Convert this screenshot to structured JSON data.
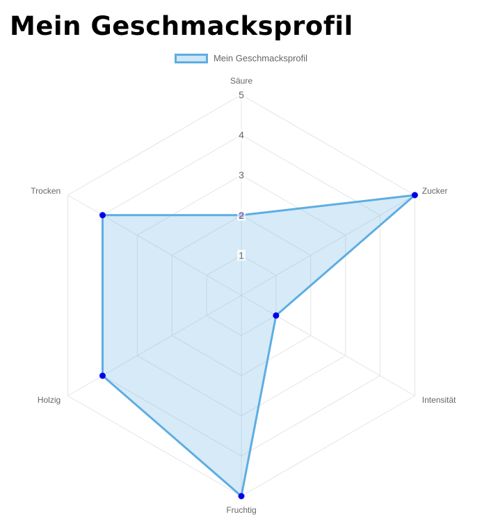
{
  "page": {
    "title": "Mein Geschmacksprofil"
  },
  "chart_data": {
    "type": "radar",
    "categories": [
      "Säure",
      "Zucker",
      "Intensität",
      "Fruchtig",
      "Holzig",
      "Trocken"
    ],
    "series": [
      {
        "name": "Mein Geschmacksprofil",
        "values": [
          2,
          5,
          1,
          5,
          4,
          4
        ]
      }
    ],
    "ticks": [
      "1",
      "2",
      "3",
      "4",
      "5"
    ],
    "range": [
      0,
      5
    ],
    "grid": true,
    "legend": "top-center",
    "colors": {
      "line": "#5DADE2",
      "fill": "rgba(93,173,226,0.25)",
      "point": "#0000ee",
      "grid": "#e4e4e4"
    }
  }
}
